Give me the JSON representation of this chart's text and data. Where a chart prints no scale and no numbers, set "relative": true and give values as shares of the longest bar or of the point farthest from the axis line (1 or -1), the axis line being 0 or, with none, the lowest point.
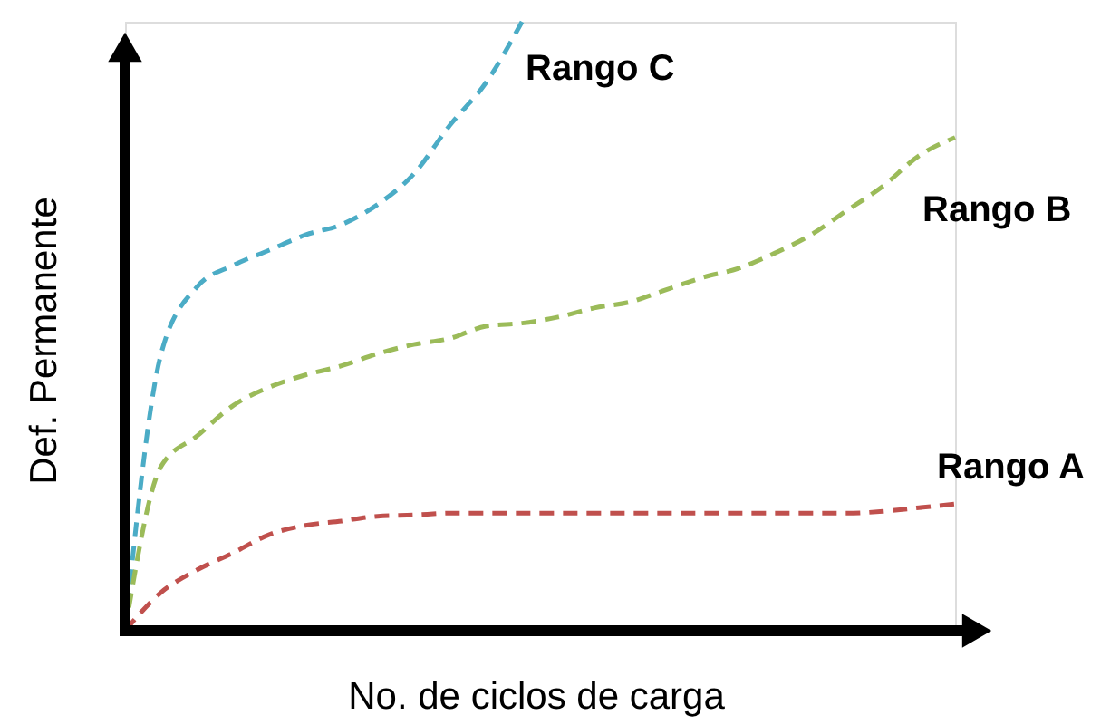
{
  "chart_data": {
    "type": "line",
    "relative": true,
    "xlabel": "No. de ciclos de carga",
    "ylabel": "Def. Permanente",
    "categories": [
      null,
      null,
      null,
      null,
      null,
      null,
      null,
      null,
      null,
      null,
      null,
      null,
      null,
      null,
      null,
      null,
      null,
      null,
      null,
      null,
      null,
      null,
      null,
      null
    ],
    "line_style": "dashed",
    "marker": "none",
    "series": [
      {
        "name": "Rango C",
        "color": "#4bacc6",
        "values": [
          0,
          0.455,
          0.565,
          0.6,
          0.625,
          0.65,
          0.667,
          0.7,
          0.75,
          0.83,
          0.9,
          1.0,
          null,
          null,
          null,
          null,
          null,
          null,
          null,
          null,
          null,
          null,
          null,
          null
        ]
      },
      {
        "name": "Rango B",
        "color": "#9bbb59",
        "values": [
          0,
          0.27,
          0.32,
          0.37,
          0.4,
          0.42,
          0.435,
          0.455,
          0.47,
          0.48,
          0.5,
          0.505,
          0.515,
          0.53,
          0.54,
          0.56,
          0.58,
          0.595,
          0.62,
          0.65,
          0.69,
          0.73,
          0.78,
          0.81
        ]
      },
      {
        "name": "Rango A",
        "color": "#c0504d",
        "values": [
          0,
          0.063,
          0.1,
          0.128,
          0.158,
          0.173,
          0.18,
          0.188,
          0.19,
          0.193,
          0.193,
          0.193,
          0.193,
          0.193,
          0.193,
          0.193,
          0.193,
          0.193,
          0.193,
          0.193,
          0.193,
          0.196,
          0.202,
          0.208
        ]
      }
    ]
  }
}
